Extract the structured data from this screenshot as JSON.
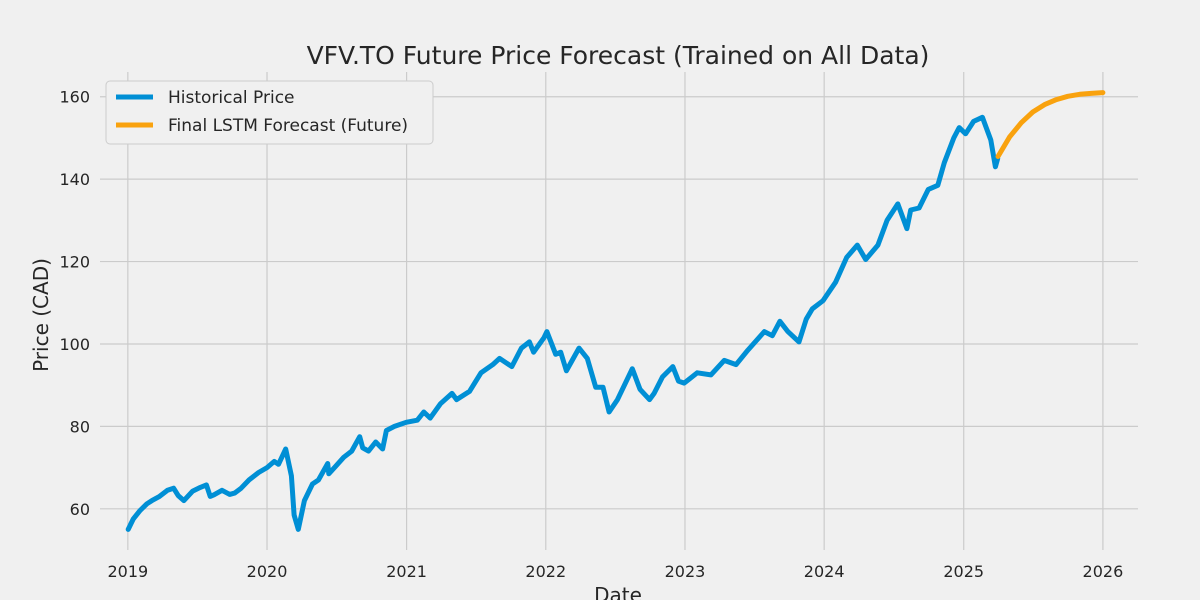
{
  "chart_data": {
    "type": "line",
    "title": "VFV.TO Future Price Forecast (Trained on All Data)",
    "xlabel": "Date",
    "ylabel": "Price (CAD)",
    "x_tick_labels": [
      "2019",
      "2020",
      "2021",
      "2022",
      "2023",
      "2024",
      "2025",
      "2026"
    ],
    "x_ticks": [
      "2019-01-01",
      "2020-01-01",
      "2021-01-01",
      "2022-01-01",
      "2023-01-01",
      "2024-01-01",
      "2025-01-01",
      "2026-01-01"
    ],
    "y_ticks": [
      60,
      80,
      100,
      120,
      140,
      160
    ],
    "xlim": [
      "2018-10-20",
      "2026-04-03"
    ],
    "ylim": [
      50.0,
      166.0
    ],
    "grid": true,
    "legend_position": "top-left",
    "series": [
      {
        "name": "Historical Price",
        "color": "#008fd5",
        "x": [
          "2019-01-02",
          "2019-01-15",
          "2019-02-01",
          "2019-02-20",
          "2019-03-05",
          "2019-03-25",
          "2019-04-15",
          "2019-05-01",
          "2019-05-13",
          "2019-05-28",
          "2019-06-20",
          "2019-07-10",
          "2019-07-26",
          "2019-08-05",
          "2019-08-15",
          "2019-09-05",
          "2019-09-25",
          "2019-10-08",
          "2019-10-25",
          "2019-11-15",
          "2019-12-10",
          "2020-01-01",
          "2020-01-20",
          "2020-01-31",
          "2020-02-19",
          "2020-03-05",
          "2020-03-12",
          "2020-03-23",
          "2020-04-08",
          "2020-04-29",
          "2020-05-15",
          "2020-06-08",
          "2020-06-11",
          "2020-06-26",
          "2020-07-20",
          "2020-08-10",
          "2020-08-31",
          "2020-09-08",
          "2020-09-23",
          "2020-10-12",
          "2020-10-30",
          "2020-11-09",
          "2020-11-30",
          "2020-12-31",
          "2021-01-29",
          "2021-02-15",
          "2021-03-04",
          "2021-03-31",
          "2021-04-30",
          "2021-05-12",
          "2021-06-15",
          "2021-07-15",
          "2021-08-15",
          "2021-09-02",
          "2021-10-04",
          "2021-10-29",
          "2021-11-19",
          "2021-11-30",
          "2021-12-27",
          "2022-01-04",
          "2022-01-27",
          "2022-02-09",
          "2022-02-24",
          "2022-03-08",
          "2022-03-29",
          "2022-04-20",
          "2022-05-12",
          "2022-05-31",
          "2022-06-16",
          "2022-07-08",
          "2022-08-16",
          "2022-09-05",
          "2022-09-30",
          "2022-10-12",
          "2022-11-03",
          "2022-11-30",
          "2022-12-15",
          "2022-12-30",
          "2023-02-02",
          "2023-03-10",
          "2023-04-14",
          "2023-05-15",
          "2023-06-15",
          "2023-07-28",
          "2023-08-18",
          "2023-09-07",
          "2023-09-28",
          "2023-10-27",
          "2023-11-15",
          "2023-12-01",
          "2023-12-29",
          "2024-01-31",
          "2024-02-29",
          "2024-03-28",
          "2024-04-19",
          "2024-05-21",
          "2024-06-14",
          "2024-07-12",
          "2024-08-05",
          "2024-08-15",
          "2024-09-06",
          "2024-09-30",
          "2024-10-25",
          "2024-11-11",
          "2024-12-06",
          "2024-12-20",
          "2025-01-06",
          "2025-01-27",
          "2025-02-19",
          "2025-03-13",
          "2025-03-25",
          "2025-03-31"
        ],
        "y": [
          55.0,
          57.5,
          59.5,
          61.2,
          62.0,
          63.0,
          64.5,
          65.0,
          63.2,
          62.0,
          64.3,
          65.2,
          65.8,
          63.0,
          63.4,
          64.5,
          63.5,
          63.8,
          65.0,
          67.0,
          68.8,
          70.0,
          71.5,
          70.8,
          74.5,
          68.0,
          58.5,
          55.0,
          62.0,
          66.0,
          67.0,
          71.0,
          68.5,
          70.0,
          72.5,
          74.0,
          77.5,
          74.8,
          74.0,
          76.2,
          74.5,
          79.0,
          80.0,
          81.0,
          81.5,
          83.5,
          82.0,
          85.5,
          88.0,
          86.5,
          88.5,
          93.0,
          95.0,
          96.5,
          94.5,
          99.0,
          100.5,
          98.0,
          101.5,
          103.0,
          97.5,
          98.0,
          93.5,
          95.5,
          99.0,
          96.5,
          89.5,
          89.5,
          83.5,
          86.5,
          94.0,
          89.0,
          86.5,
          88.0,
          92.0,
          94.5,
          91.0,
          90.5,
          93.0,
          92.5,
          96.0,
          95.0,
          98.5,
          103.0,
          102.0,
          105.5,
          103.0,
          100.5,
          106.0,
          108.5,
          110.5,
          115.0,
          121.0,
          124.0,
          120.5,
          124.0,
          130.0,
          134.0,
          128.0,
          132.5,
          133.0,
          137.5,
          138.5,
          144.0,
          150.0,
          152.5,
          151.0,
          154.0,
          155.0,
          149.5,
          143.0,
          145.0
        ]
      },
      {
        "name": "Final LSTM Forecast (Future)",
        "color": "#f9a20e",
        "x": [
          "2025-04-01",
          "2025-05-01",
          "2025-06-01",
          "2025-07-01",
          "2025-08-01",
          "2025-09-01",
          "2025-10-01",
          "2025-11-01",
          "2025-12-01",
          "2026-01-01"
        ],
        "y": [
          145.5,
          150.2,
          153.7,
          156.3,
          158.1,
          159.3,
          160.1,
          160.6,
          160.8,
          161.0
        ]
      }
    ]
  }
}
